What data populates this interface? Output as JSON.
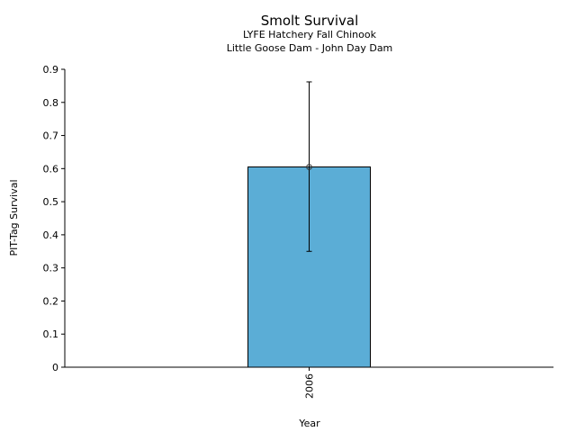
{
  "chart_data": {
    "type": "bar",
    "title": "Smolt Survival",
    "subtitle": [
      "LYFE Hatchery Fall Chinook",
      "Little Goose Dam - John Day Dam"
    ],
    "xlabel": "Year",
    "ylabel": "PIT-Tag Survival",
    "categories": [
      "2006"
    ],
    "values": [
      0.605
    ],
    "error_bars": [
      {
        "lower": 0.35,
        "upper": 0.862
      }
    ],
    "ylim": [
      0,
      0.9
    ],
    "yticks": [
      "0",
      "0.1",
      "0.2",
      "0.3",
      "0.4",
      "0.5",
      "0.6",
      "0.7",
      "0.8",
      "0.9"
    ],
    "grid": false,
    "colors": {
      "bar": "#5badd6",
      "edge": "#000000"
    }
  }
}
